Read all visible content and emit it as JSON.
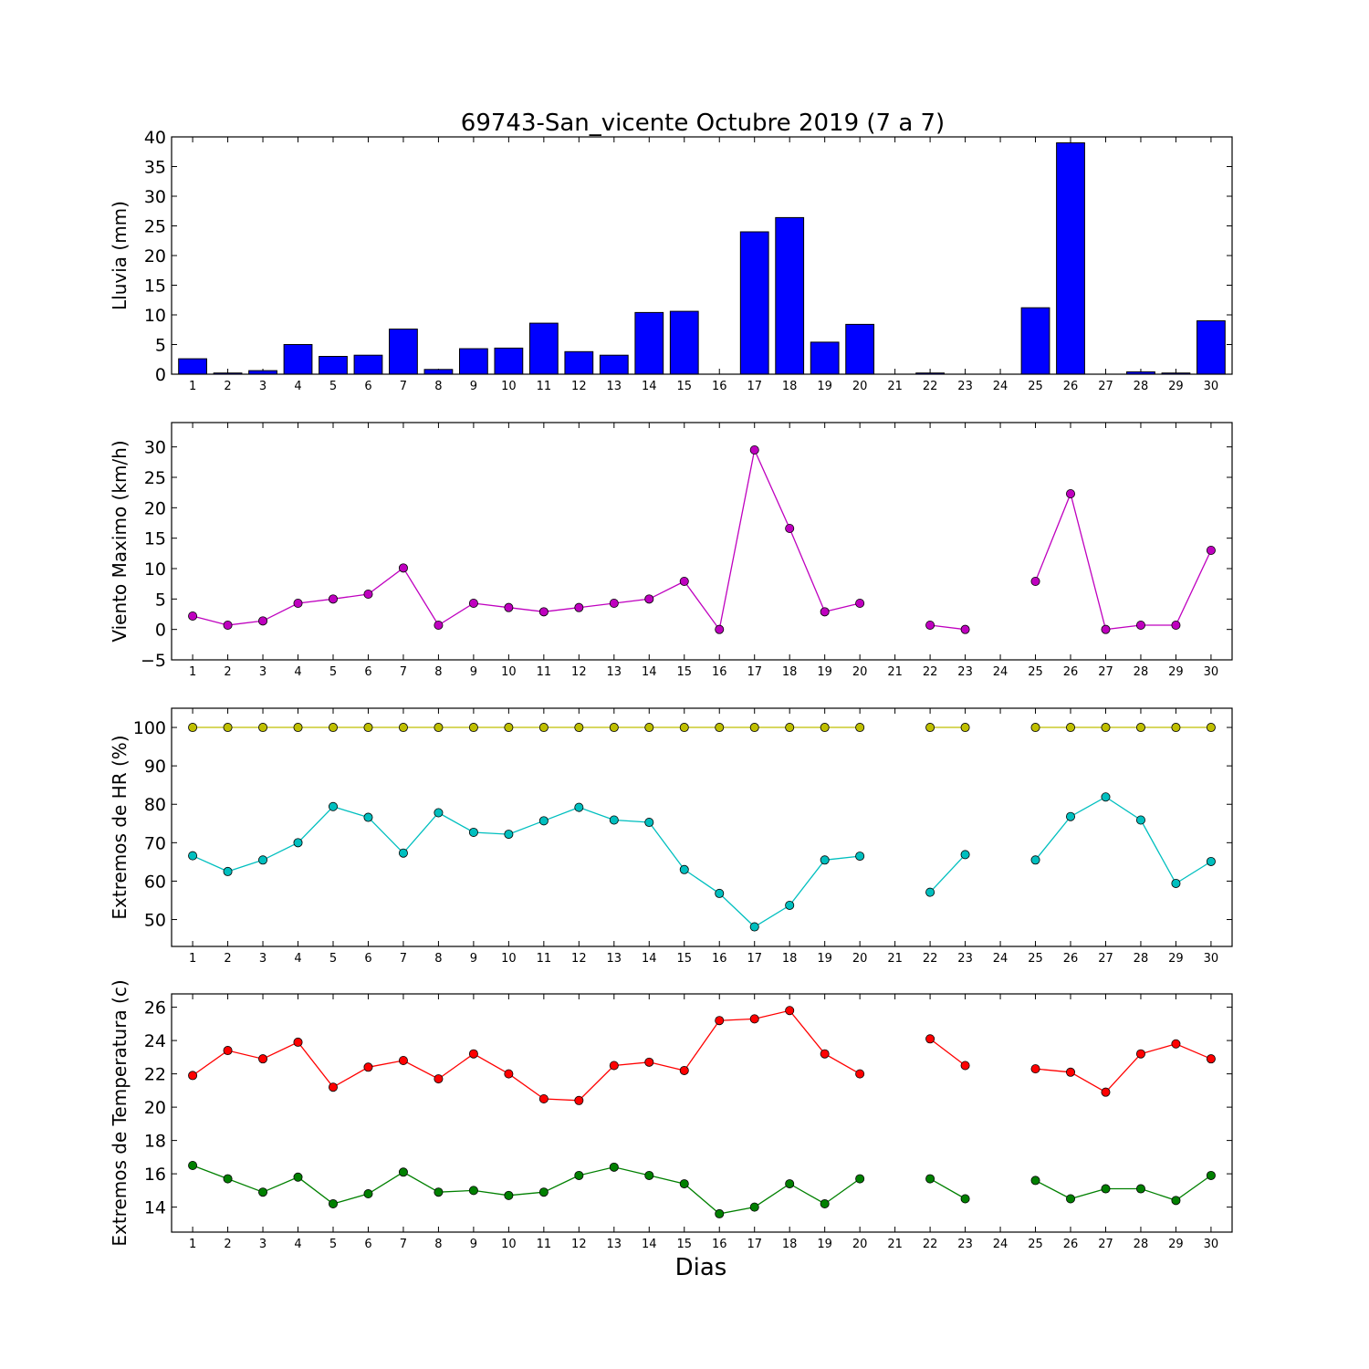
{
  "figure": {
    "title": "69743-San_vicente Octubre 2019  (7 a 7)",
    "xlabel": "Dias"
  },
  "chart_data": [
    {
      "type": "bar",
      "ylabel": "Lluvia (mm)",
      "ylim": [
        0,
        40
      ],
      "yticks": [
        0,
        5,
        10,
        15,
        20,
        25,
        30,
        35,
        40
      ],
      "categories": [
        1,
        2,
        3,
        4,
        5,
        6,
        7,
        8,
        9,
        10,
        11,
        12,
        13,
        14,
        15,
        16,
        17,
        18,
        19,
        20,
        21,
        22,
        23,
        24,
        25,
        26,
        27,
        28,
        29,
        30
      ],
      "series": [
        {
          "color": "#0000ff",
          "values": [
            2.6,
            0.2,
            0.6,
            5.0,
            3.0,
            3.2,
            7.6,
            0.8,
            4.3,
            4.4,
            8.6,
            3.8,
            3.2,
            10.4,
            10.6,
            0.0,
            24.0,
            26.4,
            5.4,
            8.4,
            null,
            0.2,
            0.0,
            0.0,
            11.2,
            39.0,
            0.0,
            0.4,
            0.2,
            9.0
          ]
        }
      ],
      "grid": false
    },
    {
      "type": "line",
      "ylabel": "Viento Maximo (km/h)",
      "ylim": [
        -5,
        34
      ],
      "yticks": [
        -5,
        0,
        5,
        10,
        15,
        20,
        25,
        30
      ],
      "x": [
        1,
        2,
        3,
        4,
        5,
        6,
        7,
        8,
        9,
        10,
        11,
        12,
        13,
        14,
        15,
        16,
        17,
        18,
        19,
        20,
        21,
        22,
        23,
        24,
        25,
        26,
        27,
        28,
        29,
        30
      ],
      "series": [
        {
          "color": "#bf00bf",
          "values": [
            2.2,
            0.7,
            1.4,
            4.3,
            5.0,
            5.8,
            10.1,
            0.7,
            4.3,
            3.6,
            2.9,
            3.6,
            4.3,
            5.0,
            7.9,
            0.0,
            29.5,
            16.6,
            2.9,
            4.3,
            null,
            0.7,
            0.0,
            null,
            7.9,
            22.3,
            0.0,
            0.7,
            0.7,
            13.0
          ]
        }
      ],
      "grid": false
    },
    {
      "type": "line",
      "ylabel": "Extremos de HR (%)",
      "ylim": [
        43,
        105
      ],
      "yticks": [
        50,
        60,
        70,
        80,
        90,
        100
      ],
      "x": [
        1,
        2,
        3,
        4,
        5,
        6,
        7,
        8,
        9,
        10,
        11,
        12,
        13,
        14,
        15,
        16,
        17,
        18,
        19,
        20,
        21,
        22,
        23,
        24,
        25,
        26,
        27,
        28,
        29,
        30
      ],
      "series": [
        {
          "color": "#bfbf00",
          "values": [
            100,
            100,
            100,
            100,
            100,
            100,
            100,
            100,
            100,
            100,
            100,
            100,
            100,
            100,
            100,
            100,
            100,
            100,
            100,
            100,
            null,
            100,
            100,
            null,
            100,
            100,
            100,
            100,
            100,
            100
          ]
        },
        {
          "color": "#00bfbf",
          "values": [
            66.6,
            62.5,
            65.5,
            70.0,
            79.4,
            76.6,
            67.3,
            77.8,
            72.7,
            72.2,
            75.7,
            79.2,
            75.9,
            75.3,
            63.0,
            56.8,
            48.1,
            53.7,
            65.5,
            66.5,
            null,
            57.1,
            66.9,
            null,
            65.5,
            76.8,
            81.9,
            75.9,
            59.4,
            65.1
          ]
        }
      ],
      "grid": false
    },
    {
      "type": "line",
      "ylabel": "Extremos de Temperatura (c)",
      "ylim": [
        12.5,
        26.8
      ],
      "yticks": [
        14,
        16,
        18,
        20,
        22,
        24,
        26
      ],
      "x": [
        1,
        2,
        3,
        4,
        5,
        6,
        7,
        8,
        9,
        10,
        11,
        12,
        13,
        14,
        15,
        16,
        17,
        18,
        19,
        20,
        21,
        22,
        23,
        24,
        25,
        26,
        27,
        28,
        29,
        30
      ],
      "series": [
        {
          "color": "#ff0000",
          "values": [
            21.9,
            23.4,
            22.9,
            23.9,
            21.2,
            22.4,
            22.8,
            21.7,
            23.2,
            22.0,
            20.5,
            20.4,
            22.5,
            22.7,
            22.2,
            25.2,
            25.3,
            25.8,
            23.2,
            22.0,
            null,
            24.1,
            22.5,
            null,
            22.3,
            22.1,
            20.9,
            23.2,
            23.8,
            22.9
          ]
        },
        {
          "color": "#008000",
          "values": [
            16.5,
            15.7,
            14.9,
            15.8,
            14.2,
            14.8,
            16.1,
            14.9,
            15.0,
            14.7,
            14.9,
            15.9,
            16.4,
            15.9,
            15.4,
            13.6,
            14.0,
            15.4,
            14.2,
            15.7,
            null,
            15.7,
            14.5,
            null,
            15.6,
            14.5,
            15.1,
            15.1,
            14.4,
            15.9
          ]
        }
      ],
      "grid": false
    }
  ]
}
